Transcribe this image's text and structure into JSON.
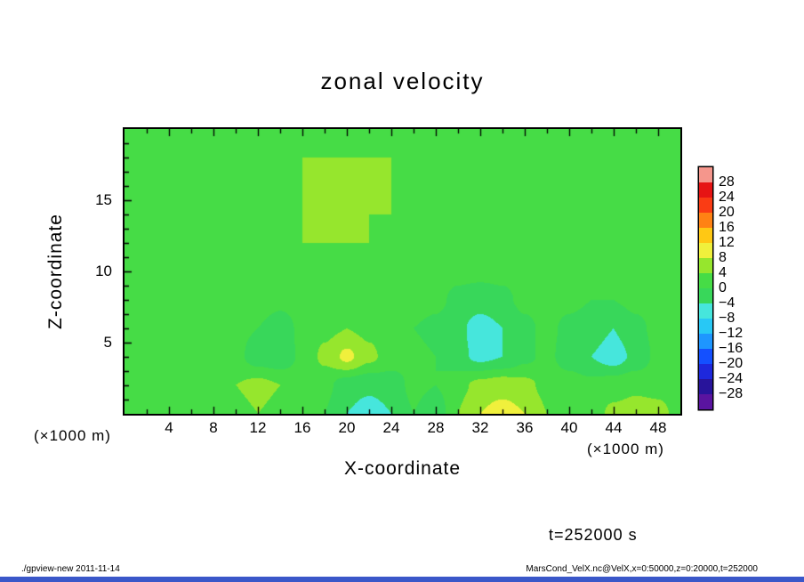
{
  "window": {
    "background": "#ffffff",
    "bottom_bar_color": "#3a57c9"
  },
  "title": "zonal velocity",
  "axes": {
    "xlabel": "X-coordinate",
    "ylabel": "Z-coordinate",
    "x_unit_left": "(×1000 m)",
    "x_unit_right": "(×1000 m)"
  },
  "annotations": {
    "time": "t=252000 s"
  },
  "footer": {
    "command": "./gpview-new  2011-11-14",
    "dataset": "MarsCond_VelX.nc@VelX,x=0:50000,z=0:20000,t=252000"
  },
  "chart_data": {
    "type": "heatmap",
    "title": "zonal velocity",
    "xlabel": "X-coordinate",
    "ylabel": "Z-coordinate",
    "x_unit": "(×1000 m)",
    "time_annotation": "t=252000 s",
    "xlim": [
      0,
      50
    ],
    "zlim": [
      0,
      20
    ],
    "x_ticklabels": [
      4,
      8,
      12,
      16,
      20,
      24,
      28,
      32,
      36,
      40,
      44,
      48
    ],
    "z_ticklabels": [
      5,
      10,
      15
    ],
    "x_tick_step": 2,
    "x_label_step": 4,
    "z_tick_step": 1,
    "grid": false,
    "legend_position": "right-colorbar",
    "levels": [
      -28,
      -24,
      -20,
      -16,
      -12,
      -8,
      -4,
      0,
      4,
      8,
      12,
      16,
      20,
      24,
      28
    ],
    "colors": [
      "#5a14a0",
      "#28149b",
      "#1e28dc",
      "#1450ff",
      "#1e96ff",
      "#28c8f5",
      "#46e6dc",
      "#38d75a",
      "#46dc46",
      "#96e62d",
      "#f0f03c",
      "#ffc814",
      "#ff8214",
      "#fa3c14",
      "#e61414",
      "#f5968c"
    ],
    "colorbar_labels": [
      "28",
      "24",
      "20",
      "16",
      "12",
      "8",
      "4",
      "0",
      "−4",
      "−8",
      "−12",
      "−16",
      "−20",
      "−24",
      "−28"
    ],
    "x": [
      0,
      2,
      4,
      6,
      8,
      10,
      12,
      14,
      16,
      18,
      20,
      22,
      24,
      26,
      28,
      30,
      32,
      34,
      36,
      38,
      40,
      42,
      44,
      46,
      48,
      50
    ],
    "z": [
      0,
      2,
      4,
      6,
      8,
      10,
      12,
      14,
      16,
      18,
      20
    ],
    "values_order": "rows from z=0 (bottom) to z=20 (top); velocity in m/s, estimated from fill colors",
    "values": [
      [
        2,
        2,
        2,
        2,
        2,
        3,
        4,
        3,
        2,
        0,
        -4,
        -6,
        -4,
        0,
        -3,
        4,
        8,
        10,
        8,
        4,
        2,
        2,
        5,
        6,
        5,
        3
      ],
      [
        2,
        2,
        2,
        2,
        2,
        4,
        5,
        4,
        2,
        1,
        -2,
        -3,
        -2,
        1,
        0,
        3,
        5,
        6,
        5,
        3,
        2,
        1,
        2,
        3,
        3,
        2
      ],
      [
        2,
        2,
        2,
        2,
        2,
        1,
        -2,
        -3,
        1,
        5,
        9,
        5,
        2,
        1,
        0,
        -3,
        -5,
        -4,
        -1,
        1,
        -2,
        -4,
        -6,
        -3,
        1,
        2
      ],
      [
        2,
        2,
        2,
        2,
        2,
        1,
        0,
        -2,
        1,
        3,
        4,
        3,
        1,
        0,
        -1,
        -3,
        -6,
        -4,
        -1,
        1,
        -1,
        -2,
        -4,
        -1,
        1,
        2
      ],
      [
        2,
        2,
        2,
        2,
        2,
        2,
        2,
        1,
        2,
        2,
        3,
        2,
        2,
        2,
        1,
        -1,
        -2,
        -1,
        1,
        2,
        1,
        0,
        0,
        1,
        2,
        2
      ],
      [
        2,
        2,
        2,
        2,
        2,
        2,
        2,
        2,
        3,
        3,
        3,
        3,
        3,
        2,
        2,
        1,
        1,
        1,
        2,
        2,
        2,
        2,
        2,
        2,
        2,
        2
      ],
      [
        2,
        2,
        2,
        2,
        2,
        2,
        3,
        3,
        4,
        4,
        4,
        4,
        3,
        3,
        3,
        2,
        2,
        2,
        2,
        2,
        2,
        2,
        2,
        2,
        2,
        2
      ],
      [
        2,
        2,
        2,
        2,
        2,
        2,
        3,
        4,
        4,
        5,
        5,
        4,
        4,
        4,
        3,
        3,
        2,
        2,
        2,
        2,
        2,
        2,
        2,
        2,
        2,
        2
      ],
      [
        2,
        2,
        2,
        2,
        2,
        2,
        3,
        4,
        4,
        5,
        5,
        5,
        4,
        4,
        4,
        3,
        3,
        2,
        2,
        2,
        2,
        2,
        2,
        2,
        2,
        2
      ],
      [
        2,
        2,
        2,
        2,
        2,
        2,
        2,
        3,
        4,
        4,
        4,
        4,
        4,
        3,
        3,
        2,
        2,
        2,
        2,
        2,
        2,
        2,
        2,
        2,
        2,
        2
      ],
      [
        2,
        2,
        2,
        2,
        2,
        2,
        2,
        2,
        3,
        3,
        3,
        3,
        3,
        3,
        2,
        2,
        2,
        2,
        2,
        2,
        2,
        2,
        2,
        2,
        2,
        2
      ]
    ]
  }
}
